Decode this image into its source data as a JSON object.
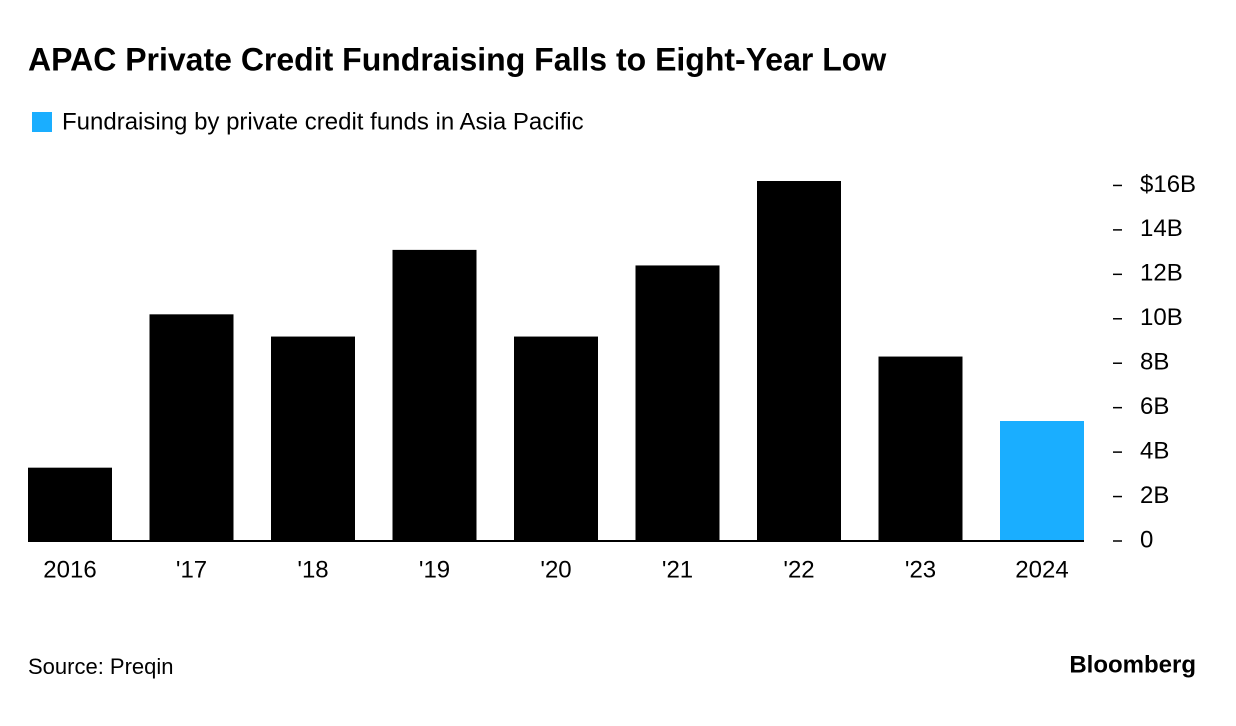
{
  "chart_data": {
    "type": "bar",
    "title": "APAC Private Credit Fundraising Falls to Eight-Year Low",
    "series": [
      {
        "name": "Fundraising by private credit funds in Asia Pacific",
        "color": "#1aaeff",
        "values": [
          3.3,
          10.2,
          9.2,
          13.1,
          9.2,
          12.4,
          16.2,
          8.3,
          5.4
        ],
        "colors": [
          "#000000",
          "#000000",
          "#000000",
          "#000000",
          "#000000",
          "#000000",
          "#000000",
          "#000000",
          "#1aaeff"
        ]
      }
    ],
    "categories": [
      "2016",
      "'17",
      "'18",
      "'19",
      "'20",
      "'21",
      "'22",
      "'23",
      "2024"
    ],
    "ylim": [
      0,
      16.2
    ],
    "yticks": [
      0,
      {
        "value": 2,
        "label": "2B"
      },
      {
        "value": 4,
        "label": "4B"
      },
      {
        "value": 6,
        "label": "6B"
      },
      {
        "value": 8,
        "label": "8B"
      },
      {
        "value": 10,
        "label": "10B"
      },
      {
        "value": 12,
        "label": "12B"
      },
      {
        "value": 14,
        "label": "14B"
      },
      {
        "value": 16,
        "label": "$16B"
      }
    ],
    "y_axis_side": "right",
    "grid": false,
    "source": "Source: Preqin",
    "logo": "Bloomberg"
  }
}
